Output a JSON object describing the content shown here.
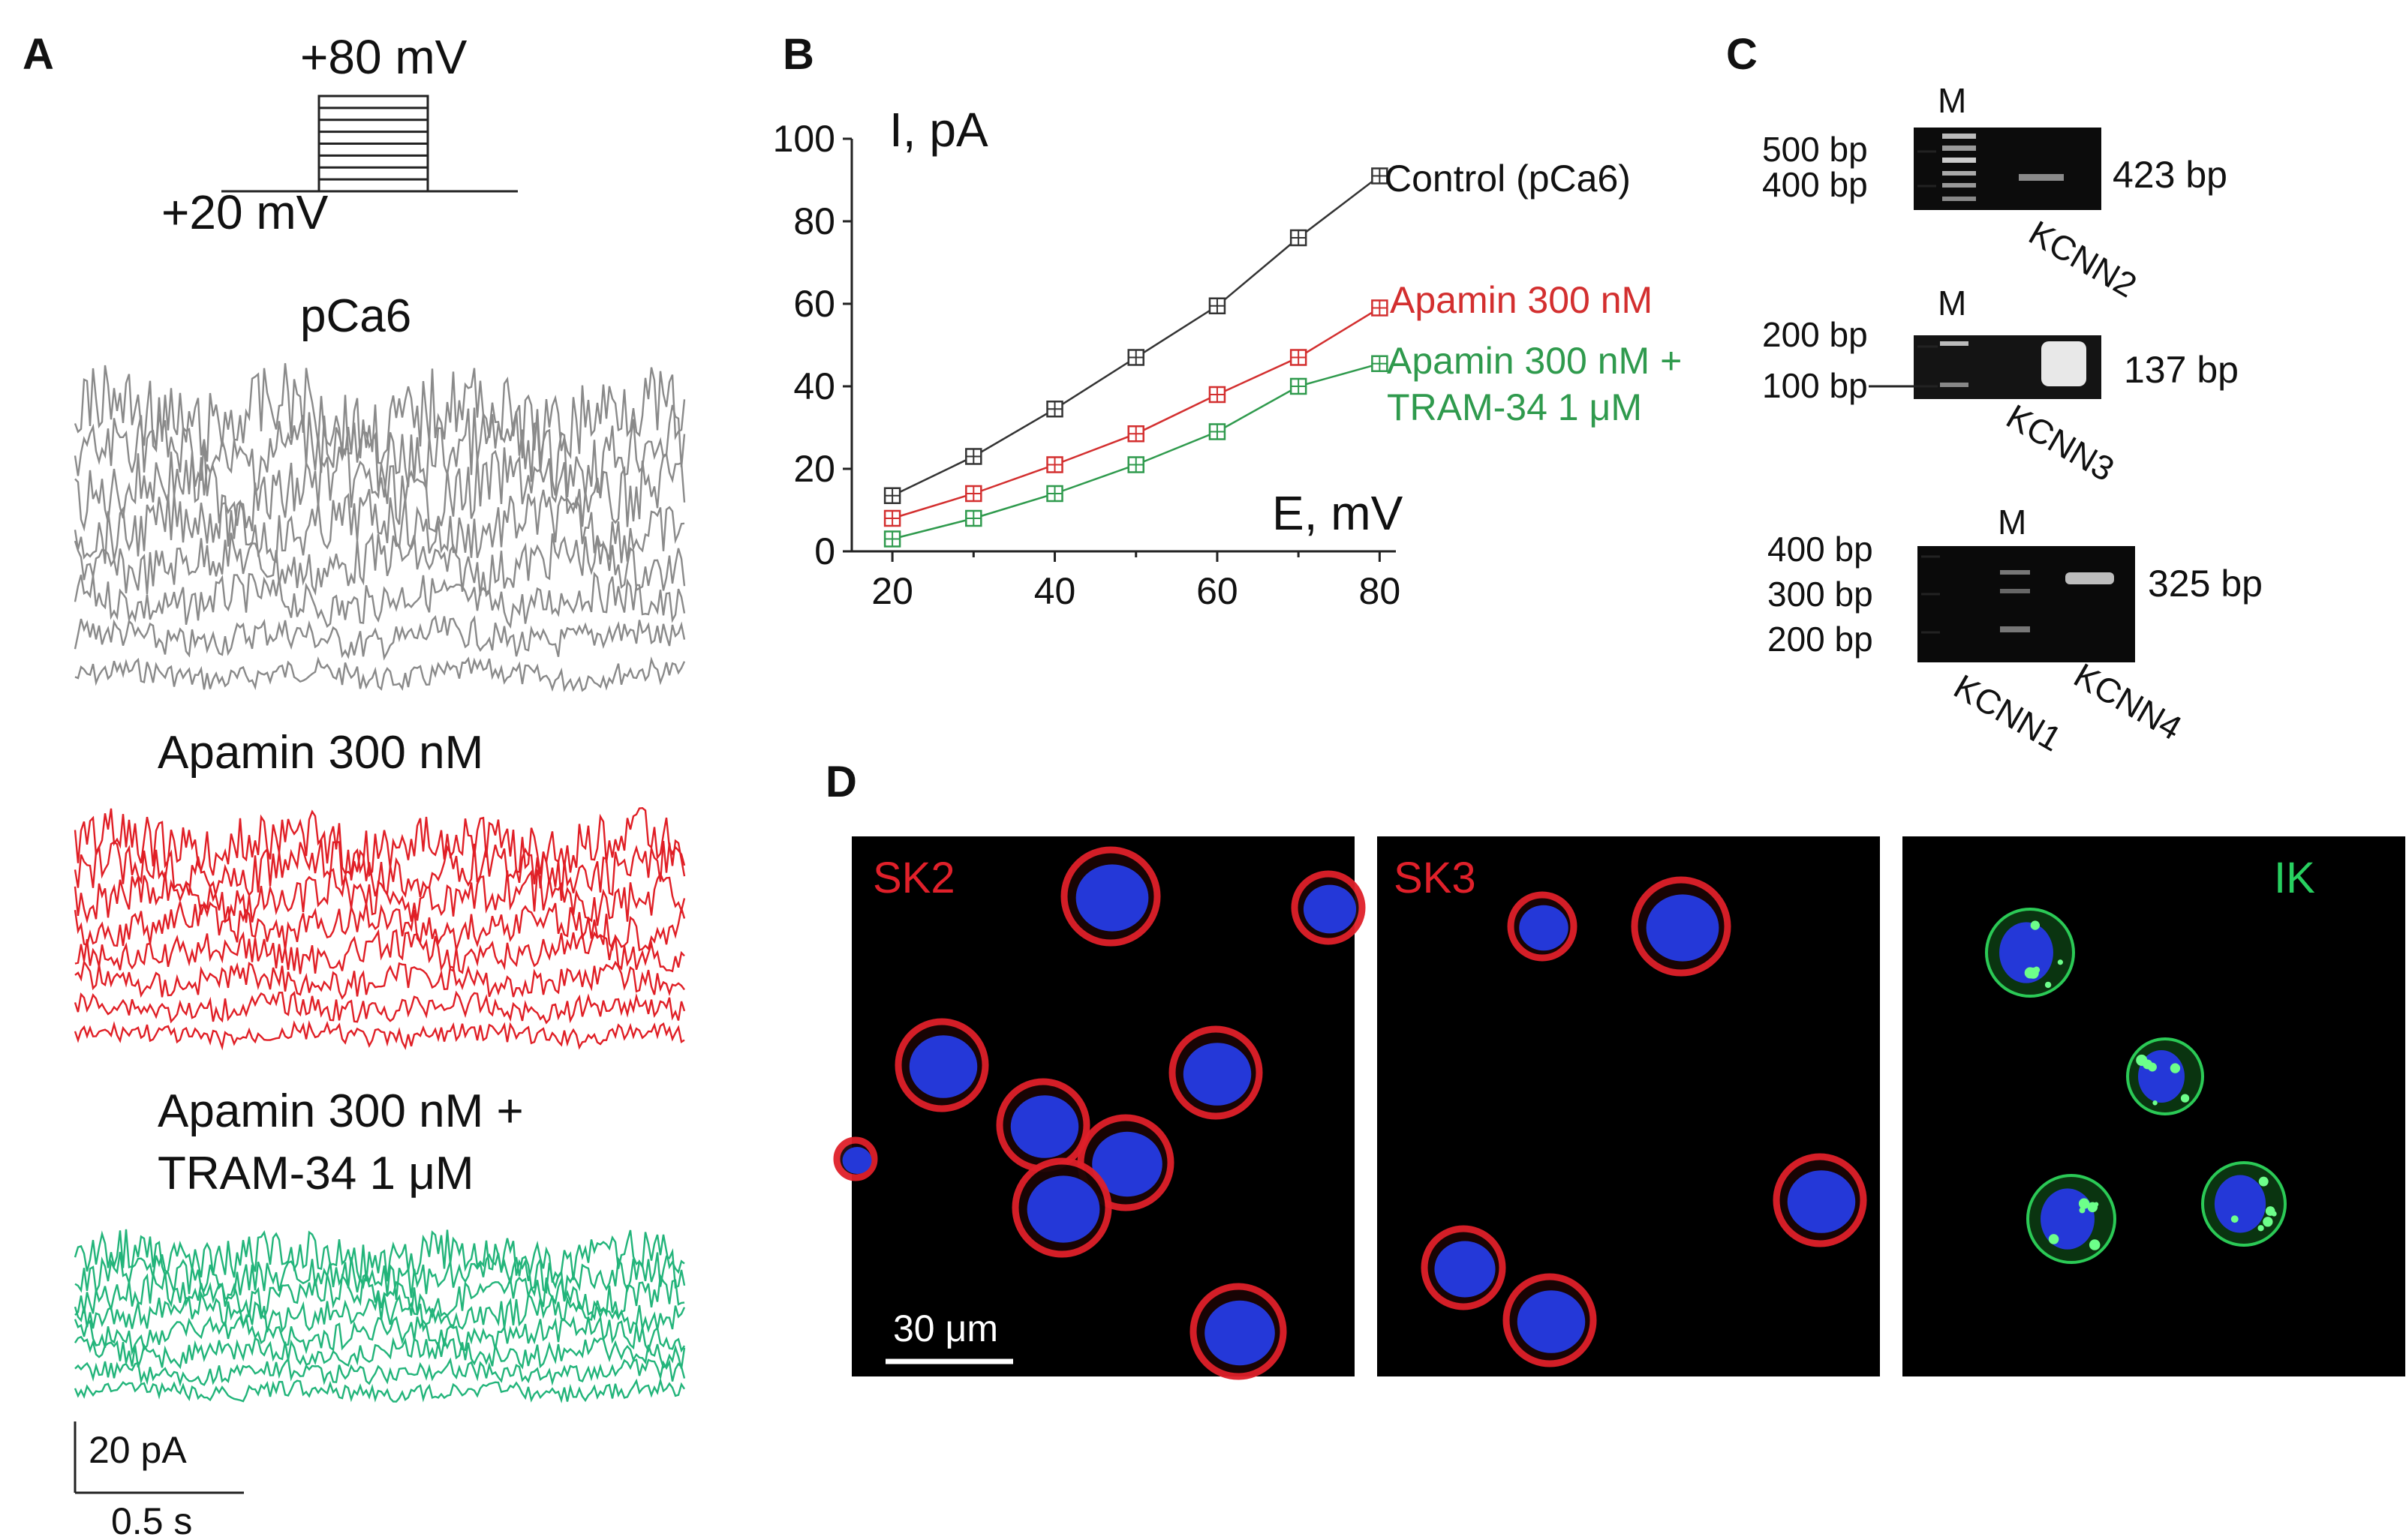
{
  "panels": {
    "a": {
      "label": "A",
      "protocol": {
        "top_voltage": "+80 mV",
        "holding_voltage": "+20 mV",
        "steps": 8
      },
      "traces": [
        {
          "label": "pCa6",
          "color": "#8a8a8a",
          "amplitude": 1.0
        },
        {
          "label": "Apamin 300 nM",
          "color": "#e01f26",
          "amplitude": 0.62
        },
        {
          "label_line1": "Apamin 300 nM +",
          "label_line2": "TRAM-34 1 μM",
          "color": "#22b47a",
          "amplitude": 0.47
        }
      ],
      "scalebar": {
        "current": "20 pA",
        "time": "0.5 s"
      }
    },
    "b": {
      "label": "B"
    },
    "c": {
      "label": "C",
      "gels": [
        {
          "marker_label": "M",
          "ladder": [
            "500 bp",
            "400 bp"
          ],
          "band_size": "423 bp",
          "gene": "KCNN2"
        },
        {
          "marker_label": "M",
          "ladder": [
            "200 bp",
            "100 bp"
          ],
          "band_size": "137 bp",
          "gene": "KCNN3"
        },
        {
          "marker_label": "M",
          "ladder": [
            "400 bp",
            "300 bp",
            "200 bp"
          ],
          "band_size": "325 bp",
          "genes": [
            "KCNN1",
            "KCNN4"
          ]
        }
      ]
    },
    "d": {
      "label": "D",
      "images": [
        {
          "label": "SK2",
          "label_color": "#e0202a",
          "stain": "membrane",
          "stain_color": "#e0202a"
        },
        {
          "label": "SK3",
          "label_color": "#e0202a",
          "stain": "membrane",
          "stain_color": "#e0202a"
        },
        {
          "label": "IK",
          "label_color": "#28d060",
          "stain": "cytoplasm",
          "stain_color": "#30e060"
        }
      ],
      "scalebar": "30 μm",
      "nucleus_color": "#2438d8"
    }
  },
  "chart_data": {
    "type": "line",
    "xlabel": "E, mV",
    "ylabel": "I, pA",
    "xlim": [
      15,
      82
    ],
    "ylim": [
      0,
      100
    ],
    "xticks": [
      20,
      40,
      60,
      80
    ],
    "yticks": [
      0,
      20,
      40,
      60,
      80,
      100
    ],
    "x": [
      20,
      30,
      40,
      50,
      60,
      70,
      80
    ],
    "legend_placement": "end-of-line labels",
    "series": [
      {
        "name": "Control (pCa6)",
        "color": "#333333",
        "values": [
          13.5,
          23,
          34.5,
          47,
          59.5,
          76,
          91
        ]
      },
      {
        "name": "Apamin 300 nM",
        "color": "#d32f2f",
        "values": [
          8,
          14,
          21,
          28.5,
          38,
          47,
          59
        ]
      },
      {
        "name_line1": "Apamin 300 nM +",
        "name_line2": "TRAM-34 1 μM",
        "color": "#2f9a4d",
        "values": [
          3,
          8,
          14,
          21,
          29,
          40,
          45.5
        ]
      }
    ]
  }
}
